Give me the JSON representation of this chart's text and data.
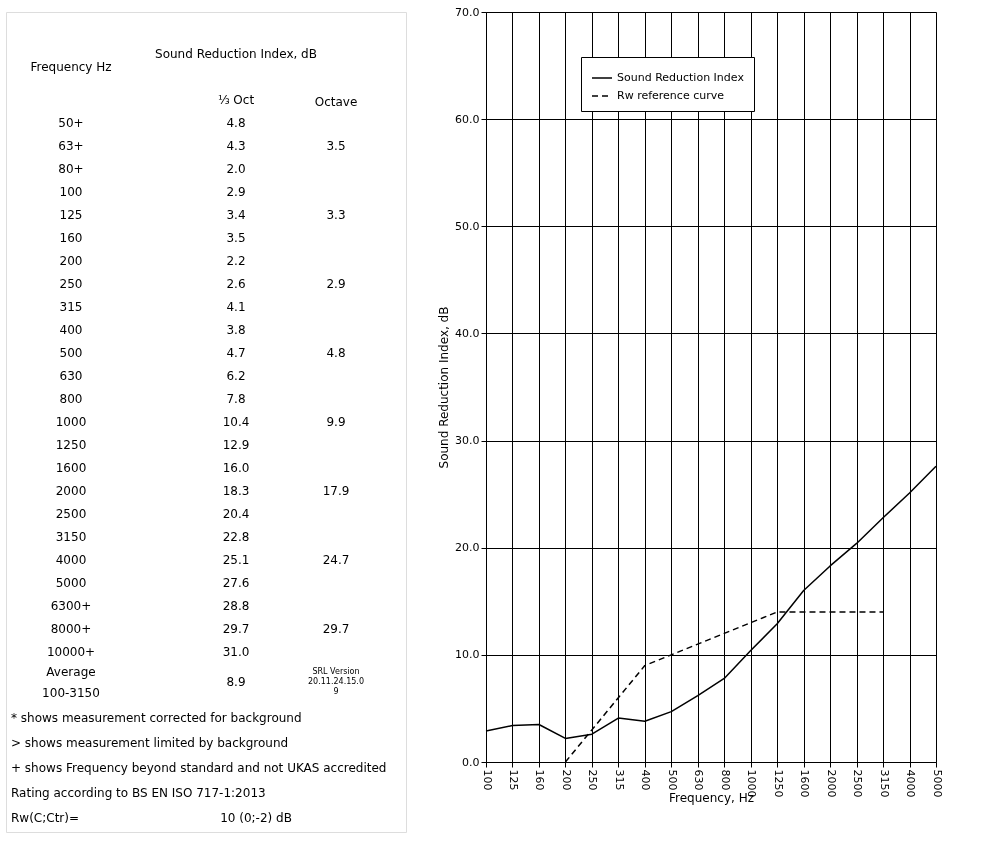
{
  "chart_data": [
    {
      "type": "other",
      "annotations": [
        "Frequency Hz",
        "Sound Reduction Index, dB",
        "⅓ Oct",
        "Octave",
        "50+",
        "4.8",
        "63+",
        "4.3",
        "80+",
        "2.0",
        "100",
        "2.9",
        "125",
        "3.4",
        "160",
        "3.5",
        "200",
        "2.2",
        "250",
        "2.6",
        "315",
        "4.1",
        "400",
        "3.8",
        "500",
        "4.7",
        "630",
        "6.2",
        "800",
        "7.8",
        "1000",
        "10.4",
        "1250",
        "12.9",
        "1600",
        "16.0",
        "2000",
        "18.3",
        "2500",
        "20.4",
        "3150",
        "22.8",
        "4000",
        "25.1",
        "5000",
        "27.6",
        "6300+",
        "28.8",
        "8000+",
        "29.7",
        "10000+",
        "31.0",
        "3.5",
        "3.3",
        "2.9",
        "4.8",
        "9.9",
        "17.9",
        "24.7",
        "29.7",
        "Average",
        "100-3150",
        "8.9",
        "SRL Version\n20.11.24.15.0\n9",
        "* shows measurement corrected for background",
        "> shows measurement limited by background",
        "+ shows Frequency beyond standard and not UKAS accredited",
        "Rating according to BS EN ISO 717-1:2013",
        "Rw(C;Ctr)=",
        "10 (0;-2) dB"
      ]
    },
    {
      "type": "line",
      "xlabel": "Frequency, Hz",
      "ylabel": "Sound Reduction Index, dB",
      "categories": [
        "100",
        "125",
        "160",
        "200",
        "250",
        "315",
        "400",
        "500",
        "630",
        "800",
        "1000",
        "1250",
        "1600",
        "2000",
        "2500",
        "3150",
        "4000",
        "5000"
      ],
      "series": [
        {
          "name": "Sound Reduction Index",
          "color": "#000000",
          "line_style": "solid",
          "values": [
            2.9,
            3.4,
            3.5,
            2.2,
            2.6,
            4.1,
            3.8,
            4.7,
            6.2,
            7.8,
            10.4,
            12.9,
            16.0,
            18.3,
            20.4,
            22.8,
            25.1,
            27.6
          ]
        },
        {
          "name": "Rw reference curve",
          "color": "#000000",
          "line_style": "dashed",
          "values": [
            null,
            null,
            null,
            0,
            3,
            6,
            9,
            10,
            11,
            12,
            13,
            14,
            14,
            14,
            14,
            14,
            null,
            null
          ]
        }
      ],
      "ylim": [
        0,
        70
      ],
      "yticks": [
        {
          "value": 0,
          "label": "0.0"
        },
        {
          "value": 10,
          "label": "10.0"
        },
        {
          "value": 20,
          "label": "20.0"
        },
        {
          "value": 30,
          "label": "30.0"
        },
        {
          "value": 40,
          "label": "40.0"
        },
        {
          "value": 50,
          "label": "50.0"
        },
        {
          "value": 60,
          "label": "60.0"
        },
        {
          "value": 70,
          "label": "70.0"
        }
      ],
      "grid": true,
      "legend": "top left"
    }
  ]
}
